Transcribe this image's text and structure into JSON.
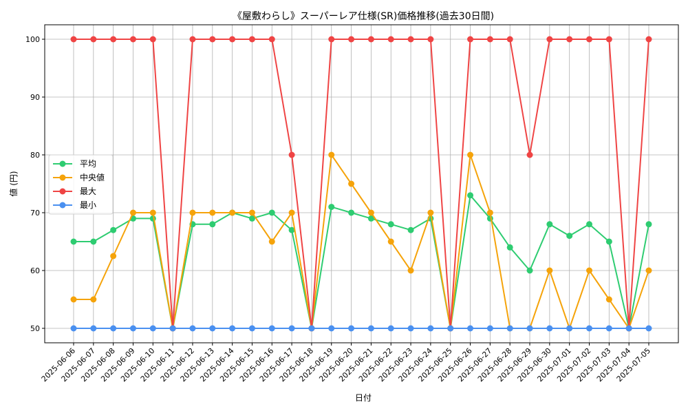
{
  "chart_data": {
    "type": "line",
    "title": "《屋敷わらし》スーパーレア仕様(SR)価格推移(過去30日間)",
    "xlabel": "日付",
    "ylabel": "値 (円)",
    "ylim": [
      47.5,
      102.5
    ],
    "yticks": [
      50,
      60,
      70,
      80,
      90,
      100
    ],
    "grid": true,
    "legend_position": "center-left",
    "categories": [
      "2025-06-06",
      "2025-06-07",
      "2025-06-08",
      "2025-06-09",
      "2025-06-10",
      "2025-06-11",
      "2025-06-12",
      "2025-06-13",
      "2025-06-14",
      "2025-06-15",
      "2025-06-16",
      "2025-06-17",
      "2025-06-18",
      "2025-06-19",
      "2025-06-20",
      "2025-06-21",
      "2025-06-22",
      "2025-06-23",
      "2025-06-24",
      "2025-06-25",
      "2025-06-26",
      "2025-06-27",
      "2025-06-28",
      "2025-06-29",
      "2025-06-30",
      "2025-07-01",
      "2025-07-02",
      "2025-07-03",
      "2025-07-04",
      "2025-07-05"
    ],
    "series": [
      {
        "name": "平均",
        "color": "#2ecc71",
        "values": [
          65,
          65,
          67,
          69,
          69,
          50,
          68,
          68,
          70,
          69,
          70,
          67,
          50,
          71,
          70,
          69,
          68,
          67,
          69,
          50,
          73,
          69,
          64,
          60,
          68,
          66,
          68,
          65,
          50,
          68
        ]
      },
      {
        "name": "中央値",
        "color": "#f5a30a",
        "values": [
          55,
          55,
          62.5,
          70,
          70,
          50,
          70,
          70,
          70,
          70,
          65,
          70,
          50,
          80,
          75,
          70,
          65,
          60,
          70,
          50,
          80,
          70,
          50,
          50,
          60,
          50,
          60,
          55,
          50,
          60
        ]
      },
      {
        "name": "最大",
        "color": "#ef4444",
        "values": [
          100,
          100,
          100,
          100,
          100,
          50,
          100,
          100,
          100,
          100,
          100,
          80,
          50,
          100,
          100,
          100,
          100,
          100,
          100,
          50,
          100,
          100,
          100,
          80,
          100,
          100,
          100,
          100,
          50,
          100
        ]
      },
      {
        "name": "最小",
        "color": "#4a90f0",
        "values": [
          50,
          50,
          50,
          50,
          50,
          50,
          50,
          50,
          50,
          50,
          50,
          50,
          50,
          50,
          50,
          50,
          50,
          50,
          50,
          50,
          50,
          50,
          50,
          50,
          50,
          50,
          50,
          50,
          50,
          50
        ]
      }
    ]
  }
}
